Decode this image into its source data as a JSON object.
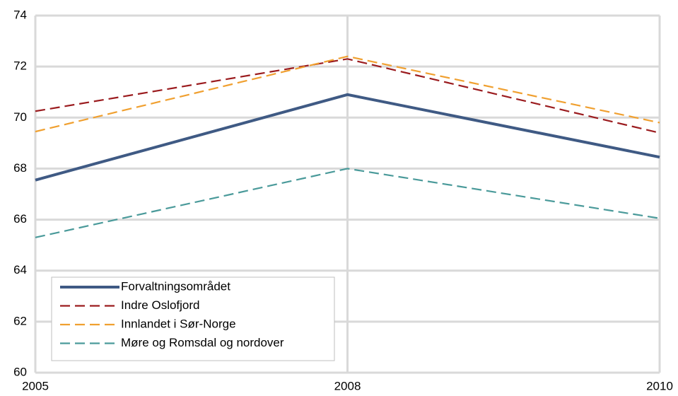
{
  "chart_data": {
    "type": "line",
    "categories": [
      "2005",
      "2008",
      "2010"
    ],
    "series": [
      {
        "name": "Forvaltningsområdet",
        "color": "#3f5a84",
        "dash": "solid",
        "values": [
          67.55,
          70.9,
          68.45
        ]
      },
      {
        "name": "Indre Oslofjord",
        "color": "#9b1c1f",
        "dash": "dashed",
        "values": [
          70.25,
          72.3,
          69.4
        ]
      },
      {
        "name": "Innlandet i Sør-Norge",
        "color": "#f0a030",
        "dash": "dashed",
        "values": [
          69.45,
          72.4,
          69.8
        ]
      },
      {
        "name": "Møre og Romsdal og nordover",
        "color": "#4a9a9a",
        "dash": "dashed",
        "values": [
          65.3,
          68.0,
          66.05
        ]
      }
    ],
    "ylim": [
      60,
      74
    ],
    "yticks": [
      60,
      62,
      64,
      66,
      68,
      70,
      72,
      74
    ],
    "grid": true,
    "legend": "lower-left"
  }
}
